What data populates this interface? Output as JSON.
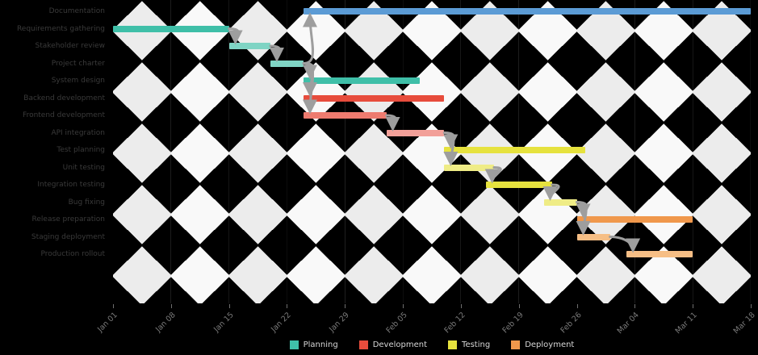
{
  "chart_data": {
    "type": "gantt",
    "title": "",
    "xlabel": "",
    "ylabel": "",
    "grid": "alternating vertical week bands",
    "x_tick_labels": [
      "Jan 01",
      "Jan 08",
      "Jan 15",
      "Jan 22",
      "Jan 29",
      "Feb 05",
      "Feb 12",
      "Feb 19",
      "Feb 26",
      "Mar 04",
      "Mar 11",
      "Mar 18"
    ],
    "tick_interval_days": 7,
    "x_range_days": 77,
    "arrow_color": "#9e9e9e",
    "tasks": [
      {
        "name": "Documentation",
        "start": 23,
        "end": 77,
        "color": "#5b9bd5",
        "dep": 3
      },
      {
        "name": "Requirements gathering",
        "start": 0,
        "end": 14,
        "color": "#3fbfa8",
        "dep": null
      },
      {
        "name": "Stakeholder review",
        "start": 14,
        "end": 19,
        "color": "#7fd4c4",
        "dep": 1
      },
      {
        "name": "Project charter",
        "start": 19,
        "end": 23,
        "color": "#7fd4c4",
        "dep": 2
      },
      {
        "name": "System design",
        "start": 23,
        "end": 37,
        "color": "#3fbfa8",
        "dep": 3
      },
      {
        "name": "Backend development",
        "start": 23,
        "end": 40,
        "color": "#e74c3c",
        "dep": 3
      },
      {
        "name": "Frontend development",
        "start": 23,
        "end": 33,
        "color": "#ee7b6f",
        "dep": 3
      },
      {
        "name": "API integration",
        "start": 33,
        "end": 40,
        "color": "#f2a099",
        "dep": 6
      },
      {
        "name": "Test planning",
        "start": 40,
        "end": 57,
        "color": "#e6e23e",
        "dep": 7
      },
      {
        "name": "Unit testing",
        "start": 40,
        "end": 46,
        "color": "#efec86",
        "dep": 7
      },
      {
        "name": "Integration testing",
        "start": 45,
        "end": 53,
        "color": "#e6e23e",
        "dep": 9
      },
      {
        "name": "Bug fixing",
        "start": 52,
        "end": 56,
        "color": "#efec86",
        "dep": 10
      },
      {
        "name": "Release preparation",
        "start": 56,
        "end": 70,
        "color": "#f0984c",
        "dep": 11
      },
      {
        "name": "Staging deployment",
        "start": 56,
        "end": 60,
        "color": "#f6be85",
        "dep": 11
      },
      {
        "name": "Production rollout",
        "start": 62,
        "end": 70,
        "color": "#f6be85",
        "dep": 13
      }
    ],
    "legend": [
      {
        "label": "Planning",
        "color": "#3fbfa8"
      },
      {
        "label": "Development",
        "color": "#e74c3c"
      },
      {
        "label": "Testing",
        "color": "#e6e23e"
      },
      {
        "label": "Deployment",
        "color": "#f0984c"
      }
    ]
  }
}
